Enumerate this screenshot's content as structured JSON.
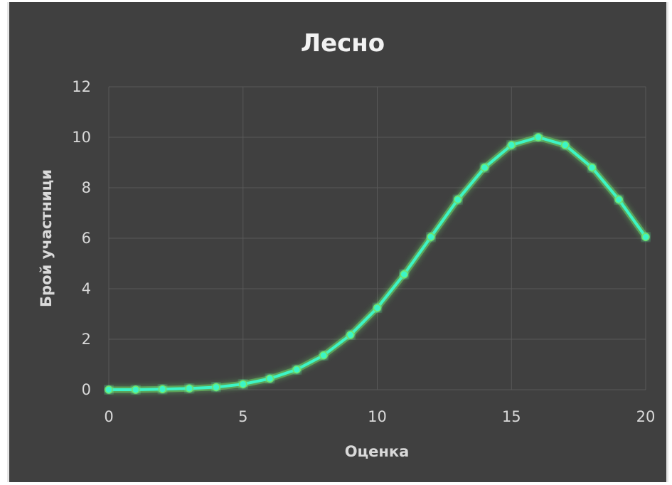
{
  "chart_data": {
    "type": "line",
    "title": "Лесно",
    "xlabel": "Оценка",
    "ylabel": "Брой участници",
    "xlim": [
      0,
      20
    ],
    "ylim": [
      0,
      12
    ],
    "x_ticks": [
      0,
      5,
      10,
      15,
      20
    ],
    "y_ticks": [
      0,
      2,
      4,
      6,
      8,
      10,
      12
    ],
    "grid": true,
    "legend": "none",
    "series": [
      {
        "color": "#3df5c6",
        "glow_color": "#6fe36a",
        "x": [
          0,
          1,
          2,
          3,
          4,
          5,
          6,
          7,
          8,
          9,
          10,
          11,
          12,
          13,
          14,
          15,
          16,
          17,
          18,
          19,
          20
        ],
        "y": [
          0.0,
          0.0,
          0.02,
          0.05,
          0.1,
          0.22,
          0.44,
          0.8,
          1.36,
          2.17,
          3.24,
          4.57,
          6.05,
          7.53,
          8.8,
          9.69,
          10.0,
          9.69,
          8.8,
          7.53,
          6.05
        ]
      }
    ]
  }
}
